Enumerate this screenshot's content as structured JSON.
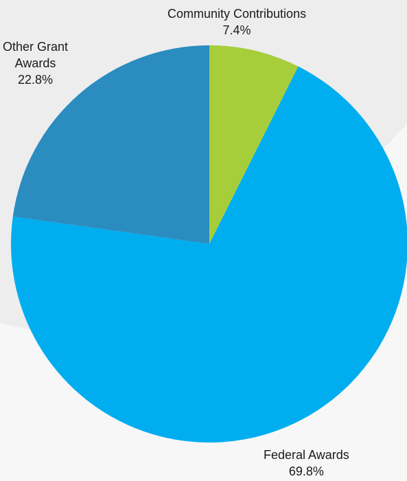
{
  "chart_data": {
    "type": "pie",
    "categories": [
      "Community Contributions",
      "Federal Awards",
      "Other Grant Awards"
    ],
    "values": [
      7.4,
      69.8,
      22.8
    ],
    "unit": "%",
    "start_angle": "top",
    "direction": "clockwise",
    "slices": [
      {
        "label": "Community Contributions",
        "value_label": "7.4%",
        "value": 7.4,
        "color": "#a6cd3a"
      },
      {
        "label": "Federal Awards",
        "value_label": "69.8%",
        "value": 69.8,
        "color": "#00aeef"
      },
      {
        "label": "Other Grant",
        "label_line2": "Awards",
        "value_label": "22.8%",
        "value": 22.8,
        "color": "#2b8cbf"
      }
    ]
  },
  "colors": {
    "background": "#f7f7f7",
    "background_shape": "#ececec",
    "text": "#1a1a1a"
  }
}
